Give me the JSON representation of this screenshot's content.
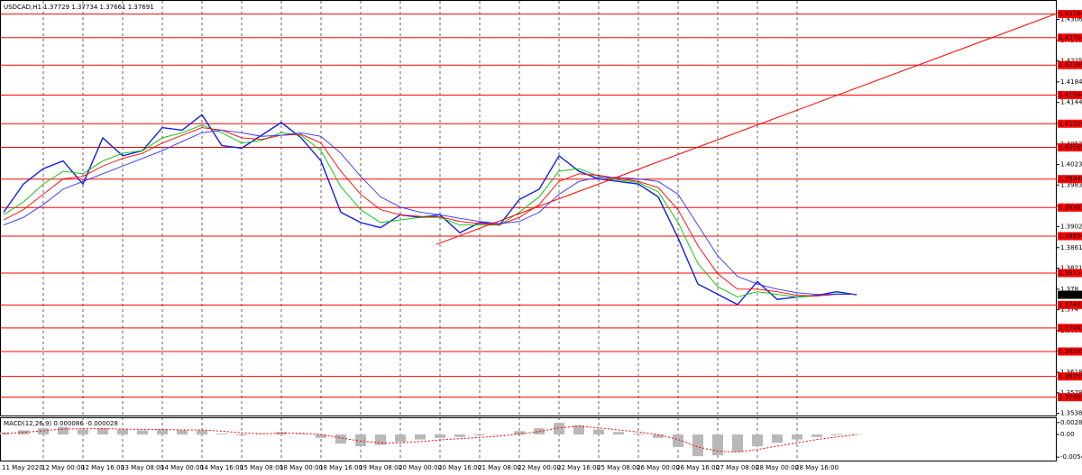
{
  "chart_data": [
    {
      "type": "line",
      "title": "USDCAD,H1  1.37729 1.37734 1.37661 1.37691",
      "categories": [
        "11 May 2020",
        null,
        "12 May 00:00",
        null,
        "12 May 16:00",
        null,
        "13 May 08:00",
        null,
        "14 May 00:00",
        null,
        "14 May 16:00",
        null,
        "15 May 08:00",
        null,
        "18 May 00:00",
        null,
        "18 May 16:00",
        null,
        "19 May 08:00",
        null,
        "20 May 00:00",
        null,
        "20 May 16:00",
        null,
        "21 May 08:00",
        null,
        "22 May 00:00",
        null,
        "22 May 16:00",
        null,
        "25 May 08:00",
        null,
        "26 May 00:00",
        null,
        "26 May 16:00",
        null,
        "27 May 08:00",
        null,
        "28 May 00:00",
        null,
        "28 May 16:00",
        null,
        null,
        null
      ],
      "series": [
        {
          "color": "#1020e0",
          "values": [
            1.393,
            1.3985,
            1.4015,
            1.403,
            1.3985,
            1.4075,
            1.404,
            1.405,
            1.4095,
            1.409,
            1.412,
            1.406,
            1.4055,
            1.408,
            1.4105,
            1.4075,
            1.403,
            1.393,
            1.391,
            1.39,
            1.3925,
            1.392,
            1.3925,
            1.389,
            1.391,
            1.3905,
            1.3955,
            1.3975,
            1.404,
            1.401,
            1.3995,
            1.399,
            1.3985,
            1.396,
            1.388,
            1.379,
            1.377,
            1.375,
            1.3795,
            1.376,
            1.3765,
            1.3768,
            1.3775,
            1.37691
          ]
        },
        {
          "color": "#00c000",
          "values": [
            1.3925,
            1.395,
            1.3985,
            1.401,
            1.4005,
            1.403,
            1.4045,
            1.405,
            1.4075,
            1.4085,
            1.41,
            1.4085,
            1.4065,
            1.407,
            1.4085,
            1.408,
            1.405,
            1.398,
            1.3935,
            1.391,
            1.3915,
            1.392,
            1.392,
            1.3905,
            1.3905,
            1.3905,
            1.393,
            1.396,
            1.401,
            1.4015,
            1.4,
            1.3993,
            1.3988,
            1.397,
            1.391,
            1.383,
            1.3785,
            1.3765,
            1.3775,
            1.377,
            1.3765,
            1.3767,
            1.3771,
            1.377
          ]
        },
        {
          "color": "#ff0000",
          "values": [
            1.3915,
            1.3935,
            1.3965,
            1.3995,
            1.4,
            1.402,
            1.4035,
            1.4045,
            1.4065,
            1.408,
            1.4095,
            1.409,
            1.4075,
            1.4072,
            1.408,
            1.4082,
            1.4065,
            1.401,
            1.3965,
            1.3935,
            1.3925,
            1.3922,
            1.3921,
            1.3912,
            1.3908,
            1.3906,
            1.392,
            1.3945,
            1.399,
            1.4005,
            1.4002,
            1.3996,
            1.399,
            1.3978,
            1.3935,
            1.3865,
            1.381,
            1.378,
            1.378,
            1.3775,
            1.3768,
            1.3767,
            1.377,
            1.377
          ]
        },
        {
          "color": "#3030ff",
          "values": [
            1.3905,
            1.392,
            1.3945,
            1.3975,
            1.399,
            1.4005,
            1.402,
            1.4035,
            1.405,
            1.4068,
            1.4085,
            1.409,
            1.4085,
            1.4078,
            1.408,
            1.4085,
            1.4078,
            1.4045,
            1.4,
            1.396,
            1.394,
            1.393,
            1.3925,
            1.3918,
            1.3912,
            1.3908,
            1.3912,
            1.393,
            1.3965,
            1.399,
            1.3998,
            1.3998,
            1.3995,
            1.399,
            1.3965,
            1.3905,
            1.3845,
            1.3805,
            1.379,
            1.378,
            1.3773,
            1.377,
            1.377,
            1.377
          ]
        }
      ],
      "ylim": [
        1.3532,
        1.4342
      ],
      "yticks": [
        1.4306,
        1.4265,
        1.4225,
        1.4184,
        1.4144,
        1.4103,
        1.4063,
        1.4023,
        1.3983,
        1.3942,
        1.3902,
        1.3861,
        1.3821,
        1.378,
        1.374,
        1.3699,
        1.3659,
        1.3618,
        1.3578,
        1.3538
      ],
      "hlines": [
        1.43164,
        1.42704,
        1.42169,
        1.41584,
        1.41026,
        1.40565,
        1.39946,
        1.39391,
        1.38834,
        1.38114,
        1.37493,
        1.37045,
        1.36585,
        1.36099,
        1.35695
      ],
      "hline_color": "#ff0000",
      "last_price": 1.37691,
      "trendline": {
        "x": [
          21.8,
          53.2
        ],
        "values": [
          1.3867,
          1.4319
        ],
        "color": "#ff0000"
      },
      "grid": true
    },
    {
      "type": "bar",
      "title": "MACD(12,26,9) 0.000086 -0.000028",
      "series": [
        {
          "color": "#b8b8b8",
          "values": [
            0.0005,
            0.001,
            0.0015,
            0.0018,
            0.0012,
            0.0015,
            0.0012,
            0.001,
            0.0012,
            0.001,
            0.001,
            0.0002,
            -0.0002,
            0.0001,
            0.0006,
            0.0002,
            -0.0008,
            -0.0022,
            -0.0028,
            -0.0025,
            -0.0018,
            -0.0012,
            -0.0008,
            -0.0006,
            -0.0002,
            0.0,
            0.0008,
            0.0015,
            0.0028,
            0.0022,
            0.0012,
            0.0006,
            0.0002,
            -0.0008,
            -0.003,
            -0.0052,
            -0.005,
            -0.0042,
            -0.0028,
            -0.002,
            -0.0012,
            -0.0006,
            -0.0002,
            8.6e-05
          ]
        },
        {
          "color": "#ff0000",
          "values": [
            0.0002,
            0.0005,
            0.0009,
            0.0013,
            0.0014,
            0.0014,
            0.0013,
            0.0012,
            0.0012,
            0.0011,
            0.0011,
            0.0008,
            0.0004,
            0.0002,
            0.0003,
            0.0003,
            0.0,
            -0.0008,
            -0.0016,
            -0.002,
            -0.002,
            -0.0017,
            -0.0013,
            -0.001,
            -0.0007,
            -0.0004,
            0.0001,
            0.0007,
            0.0016,
            0.002,
            0.0016,
            0.0011,
            0.0006,
            0.0,
            -0.0012,
            -0.003,
            -0.004,
            -0.0042,
            -0.0036,
            -0.0028,
            -0.002,
            -0.0012,
            -0.0006,
            -2.8e-05
          ]
        }
      ],
      "ylim": [
        -0.00626,
        0.00391
      ],
      "yticks": [
        0.002876,
        {
          "value": 0,
          "label": "0.00"
        },
        {
          "value": -0.00543,
          "label": "-0.005430"
        }
      ]
    }
  ]
}
